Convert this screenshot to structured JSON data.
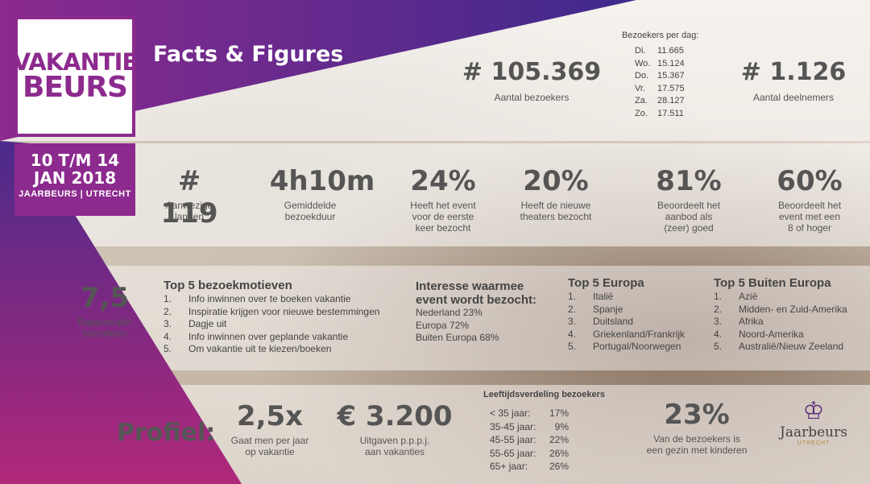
{
  "header": {
    "title": "Facts & Figures"
  },
  "logo": {
    "line1": "VAKANTIE",
    "line2": "BEURS"
  },
  "event": {
    "dates_line1": "10 T/M 14",
    "dates_line2": "JAN 2018",
    "venue": "JAARBEURS | UTRECHT"
  },
  "visitors": {
    "value": "# 105.369",
    "label": "Aantal bezoekers"
  },
  "exhibitors": {
    "value": "# 1.126",
    "label": "Aantal deelnemers"
  },
  "per_day": {
    "title": "Bezoekers per dag:",
    "rows": [
      {
        "day": "Di.",
        "count": "11.665"
      },
      {
        "day": "Wo.",
        "count": "15.124"
      },
      {
        "day": "Do.",
        "count": "15.367"
      },
      {
        "day": "Vr.",
        "count": "17.575"
      },
      {
        "day": "Za.",
        "count": "28.127"
      },
      {
        "day": "Zo.",
        "count": "17.511"
      }
    ]
  },
  "stats": [
    {
      "value": "# 119",
      "label": "Aanwezige\nlanden"
    },
    {
      "value": "4h10m",
      "label": "Gemiddelde\nbezoekduur"
    },
    {
      "value": "24%",
      "label": "Heeft het event\nvoor de eerste\nkeer bezocht"
    },
    {
      "value": "20%",
      "label": "Heeft de nieuwe\ntheaters bezocht"
    },
    {
      "value": "81%",
      "label": "Beoordeelt het\naanbod als\n(zeer) goed"
    },
    {
      "value": "60%",
      "label": "Beoordeelt het\nevent met een\n8 of hoger"
    }
  ],
  "rating": {
    "value": "7,5",
    "label": "Rapportcijfer\nbezoekers"
  },
  "motives": {
    "title": "Top 5 bezoekmotieven",
    "items": [
      "Info inwinnen over te boeken vakantie",
      "Inspiratie krijgen voor nieuwe bestemmingen",
      "Dagje uit",
      "Info inwinnen over geplande vakantie",
      "Om vakantie uit te kiezen/boeken"
    ]
  },
  "interest": {
    "title": "Interesse waarmee event wordt bezocht:",
    "items": [
      "Nederland 23%",
      "Europa 72%",
      "Buiten Europa 68%"
    ]
  },
  "europe": {
    "title": "Top 5 Europa",
    "items": [
      "Italië",
      "Spanje",
      "Duitsland",
      "Griekenland/Frankrijk",
      "Portugal/Noorwegen"
    ]
  },
  "outside_europe": {
    "title": "Top 5 Buiten Europa",
    "items": [
      "Azië",
      "Midden- en Zuid-Amerika",
      "Afrika",
      "Noord-Amerika",
      "Australië/Nieuw Zeeland"
    ]
  },
  "profile": {
    "label": "Profiel:",
    "freq": {
      "value": "2,5x",
      "label": "Gaat men per jaar\nop vakantie"
    },
    "spend": {
      "value": "€ 3.200",
      "label": "Uitgaven p.p.p.j.\naan vakanties"
    },
    "family": {
      "value": "23%",
      "label": "Van de bezoekers is\neen gezin met kinderen"
    }
  },
  "age": {
    "title": "Leeftijdsverdeling bezoekers",
    "rows": [
      {
        "range": "< 35 jaar:",
        "pct": "17%"
      },
      {
        "range": "35-45 jaar:",
        "pct": "9%"
      },
      {
        "range": "45-55 jaar:",
        "pct": "22%"
      },
      {
        "range": "55-65 jaar:",
        "pct": "26%"
      },
      {
        "range": "65+ jaar:",
        "pct": "26%"
      }
    ]
  },
  "brand": {
    "name": "Jaarbeurs",
    "tagline": "UTRECHT"
  },
  "colors": {
    "purple": "#8c2a8e",
    "violet": "#4b2a8a"
  }
}
